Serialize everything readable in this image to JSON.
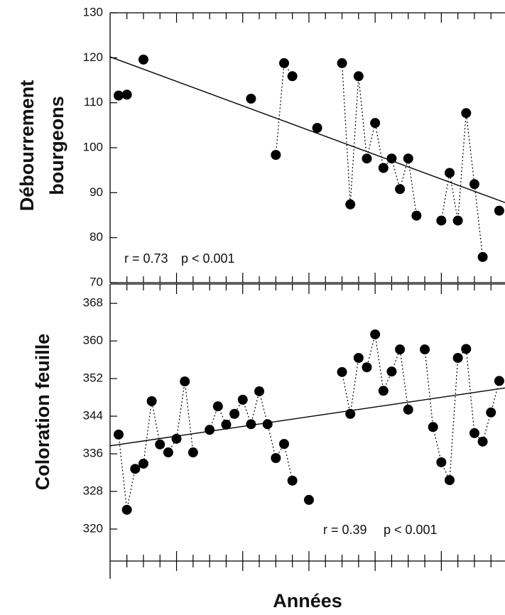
{
  "chart_data": [
    {
      "type": "line",
      "ylabel": [
        "Débourrement",
        "bourgeons"
      ],
      "annotations": [
        "r = 0.73",
        "p < 0.001"
      ],
      "categories": [
        null,
        null,
        null,
        null,
        null,
        null,
        null,
        null,
        null,
        null,
        null,
        null,
        null,
        null,
        null,
        null,
        null,
        null,
        null,
        null,
        null,
        null,
        null,
        null,
        null,
        null,
        null,
        null,
        null,
        null,
        null,
        null,
        null,
        null,
        null,
        null,
        null,
        null,
        null,
        null,
        null,
        null,
        null,
        null,
        null,
        null,
        null
      ],
      "values": [
        111.6,
        111.8,
        null,
        119.6,
        null,
        null,
        null,
        null,
        null,
        null,
        null,
        null,
        null,
        null,
        null,
        null,
        110.9,
        null,
        null,
        98.4,
        118.8,
        115.9,
        null,
        null,
        104.4,
        null,
        null,
        118.8,
        87.4,
        115.9,
        97.6,
        105.5,
        95.5,
        97.6,
        90.8,
        97.6,
        84.9,
        null,
        null,
        83.8,
        94.4,
        83.8,
        107.7,
        91.9,
        75.7,
        null,
        86.0
      ],
      "trendline": [
        120.2,
        87.8
      ],
      "color": "#000000",
      "ylim": [
        70,
        130
      ],
      "yticks": [
        70,
        80,
        90,
        100,
        110,
        120,
        130
      ]
    },
    {
      "type": "line",
      "ylabel": [
        "Coloration feuille"
      ],
      "xlabel": "Années",
      "annotations": [
        "r = 0.39",
        "p < 0.001"
      ],
      "categories": [
        null,
        null,
        null,
        null,
        null,
        null,
        null,
        null,
        null,
        null,
        null,
        null,
        null,
        null,
        null,
        null,
        null,
        null,
        null,
        null,
        null,
        null,
        null,
        null,
        null,
        null,
        null,
        null,
        null,
        null,
        null,
        null,
        null,
        null,
        null,
        null,
        null,
        null,
        null,
        null,
        null,
        null,
        null,
        null,
        null,
        null,
        null
      ],
      "values": [
        340.1,
        324.1,
        332.8,
        333.9,
        347.2,
        338.0,
        336.3,
        339.2,
        351.4,
        336.3,
        null,
        341.1,
        346.1,
        342.2,
        344.5,
        347.5,
        342.3,
        349.3,
        342.3,
        335.1,
        338.1,
        330.3,
        null,
        326.2,
        null,
        null,
        null,
        353.4,
        344.5,
        356.4,
        354.4,
        361.4,
        349.4,
        353.5,
        358.2,
        345.4,
        null,
        358.2,
        341.7,
        334.2,
        330.4,
        356.4,
        358.3,
        340.4,
        338.6,
        344.8,
        351.5
      ],
      "trendline": [
        337.7,
        350.0
      ],
      "color": "#000000",
      "ylim": [
        313.2,
        372.1
      ],
      "yticks": [
        320,
        328,
        336,
        344,
        352,
        360,
        368
      ]
    }
  ]
}
